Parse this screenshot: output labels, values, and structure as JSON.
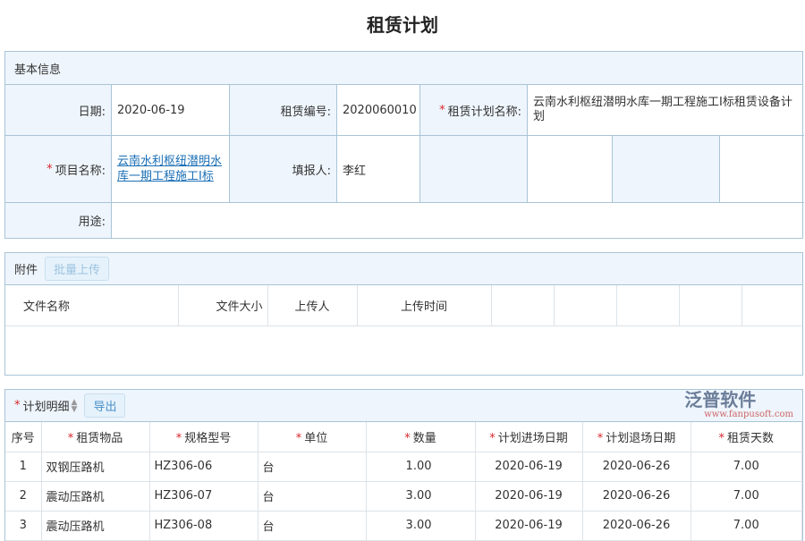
{
  "page_title": "租赁计划",
  "basic": {
    "header": "基本信息",
    "date_label": "日期:",
    "date": "2020-06-19",
    "code_label": "租赁编号:",
    "code": "2020060010",
    "plan_name_label": "租赁计划名称:",
    "plan_name": "云南水利枢纽潜明水库一期工程施工I标租赁设备计划",
    "project_label": "项目名称:",
    "project": "云南水利枢纽潜明水库一期工程施工I标",
    "reporter_label": "填报人:",
    "reporter": "李红",
    "purpose_label": "用途:",
    "purpose": ""
  },
  "attachments": {
    "header": "附件",
    "upload_button": "批量上传",
    "columns": [
      "文件名称",
      "文件大小",
      "上传人",
      "上传时间"
    ]
  },
  "plan": {
    "header": "计划明细",
    "export_button": "导出",
    "columns": [
      {
        "label": "序号",
        "required": false
      },
      {
        "label": "租赁物品",
        "required": true
      },
      {
        "label": "规格型号",
        "required": true
      },
      {
        "label": "单位",
        "required": true
      },
      {
        "label": "数量",
        "required": true
      },
      {
        "label": "计划进场日期",
        "required": true
      },
      {
        "label": "计划退场日期",
        "required": true
      },
      {
        "label": "租赁天数",
        "required": true
      }
    ],
    "rows": [
      [
        "1",
        "双钢压路机",
        "HZ306-06",
        "台",
        "1.00",
        "2020-06-19",
        "2020-06-26",
        "7.00"
      ],
      [
        "2",
        "震动压路机",
        "HZ306-07",
        "台",
        "3.00",
        "2020-06-19",
        "2020-06-26",
        "7.00"
      ],
      [
        "3",
        "震动压路机",
        "HZ306-08",
        "台",
        "3.00",
        "2020-06-19",
        "2020-06-26",
        "7.00"
      ]
    ]
  },
  "watermark": {
    "brand": "泛普软件",
    "url": "www.fanpusoft.com"
  }
}
